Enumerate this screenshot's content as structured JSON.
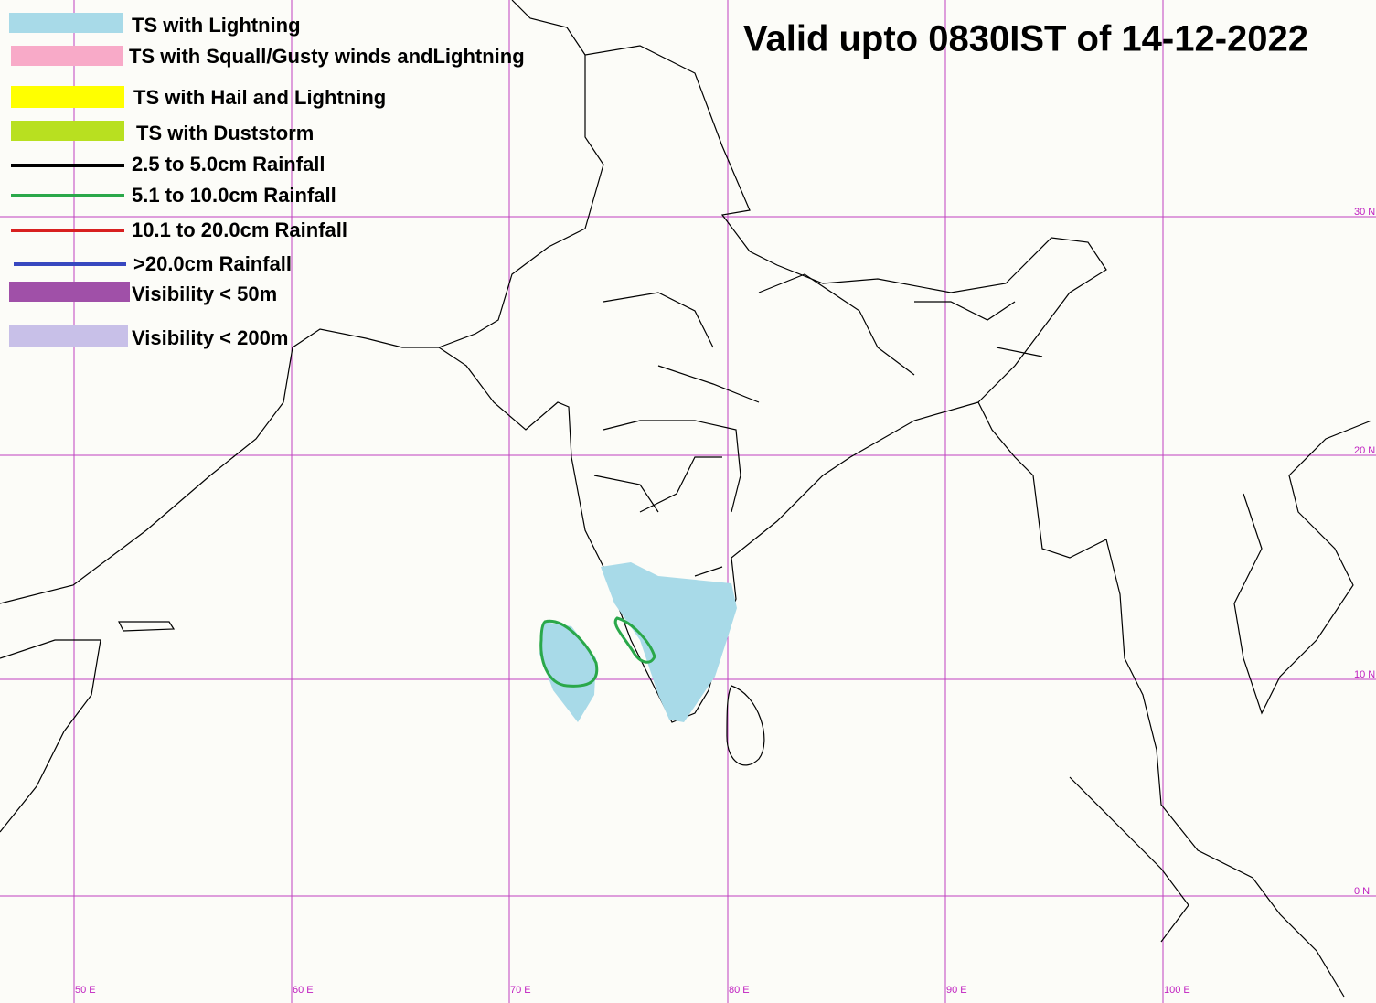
{
  "title": "Valid upto 0830IST of 14-12-2022",
  "legend": [
    "TS with Lightning",
    "TS with Squall/Gusty winds andLightning",
    "TS with Hail and Lightning",
    "TS with Duststorm",
    "2.5 to 5.0cm Rainfall",
    "5.1 to 10.0cm Rainfall",
    "10.1 to 20.0cm Rainfall",
    ">20.0cm Rainfall",
    "Visibility < 50m",
    "Visibility < 200m"
  ],
  "graticule": {
    "longitudes": [
      "50 E",
      "60 E",
      "70 E",
      "80 E",
      "90 E",
      "100 E"
    ],
    "latitudes": [
      "30 N",
      "20 N",
      "10 N",
      "0 N"
    ]
  }
}
